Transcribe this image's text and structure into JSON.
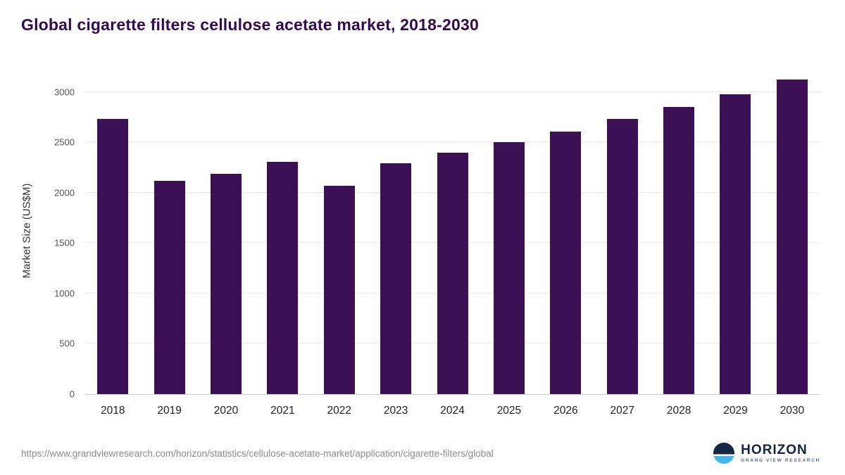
{
  "title": "Global cigarette filters cellulose acetate market, 2018-2030",
  "footer": {
    "source_url": "https://www.grandviewresearch.com/horizon/statistics/cellulose-acetate-market/application/cigarette-filters/global",
    "logo_name": "HORIZON",
    "logo_subtext": "GRAND VIEW RESEARCH"
  },
  "colors": {
    "bar": "#3d1056",
    "title": "#320a4f",
    "grid": "#e8e8e8",
    "logo_navy": "#15233f",
    "logo_blue": "#43b6e8"
  },
  "chart_data": {
    "type": "bar",
    "title": "Global cigarette filters cellulose acetate market, 2018-2030",
    "categories": [
      "2018",
      "2019",
      "2020",
      "2021",
      "2022",
      "2023",
      "2024",
      "2025",
      "2026",
      "2027",
      "2028",
      "2029",
      "2030"
    ],
    "values": [
      2730,
      2120,
      2190,
      2310,
      2070,
      2290,
      2395,
      2500,
      2610,
      2730,
      2850,
      2980,
      3125
    ],
    "xlabel": "",
    "ylabel": "Market Size (US$M)",
    "ylim": [
      0,
      3250
    ],
    "yticks": [
      0,
      500,
      1000,
      1500,
      2000,
      2500,
      3000
    ],
    "grid": true,
    "legend": false
  }
}
